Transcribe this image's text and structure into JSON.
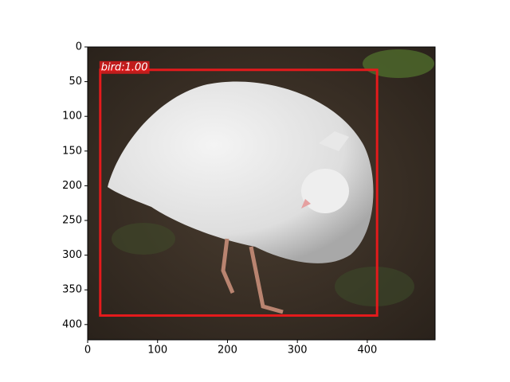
{
  "chart_data": {
    "type": "image",
    "xlim": [
      0,
      497
    ],
    "ylim": [
      422,
      0
    ],
    "xticks": [
      0,
      100,
      200,
      300,
      400
    ],
    "yticks": [
      0,
      50,
      100,
      150,
      200,
      250,
      300,
      350,
      400
    ],
    "boxes": [
      {
        "label": "bird:1.00",
        "color": "#e41a1c",
        "x0": 18,
        "y0": 33,
        "x1": 414,
        "y1": 387
      }
    ]
  }
}
